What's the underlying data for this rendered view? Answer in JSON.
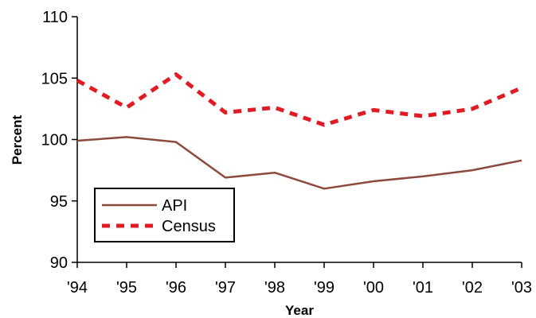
{
  "chart_data": {
    "type": "line",
    "title": "",
    "xlabel": "Year",
    "ylabel": "Percent",
    "categories": [
      "'94",
      "'95",
      "'96",
      "'97",
      "'98",
      "'99",
      "'00",
      "'01",
      "'02",
      "'03"
    ],
    "ylim": [
      90,
      110
    ],
    "yticks": [
      90,
      95,
      100,
      105,
      110
    ],
    "grid": false,
    "legend_position": "bottom-left",
    "series": [
      {
        "name": "API",
        "color": "#8b4a3c",
        "style": "solid",
        "values": [
          99.9,
          100.2,
          99.8,
          96.9,
          97.3,
          96.0,
          96.6,
          97.0,
          97.5,
          98.3
        ]
      },
      {
        "name": "Census",
        "color": "#e01b24",
        "style": "dashed",
        "values": [
          104.8,
          102.6,
          105.3,
          102.2,
          102.6,
          101.2,
          102.4,
          101.9,
          102.5,
          104.2
        ]
      }
    ]
  }
}
